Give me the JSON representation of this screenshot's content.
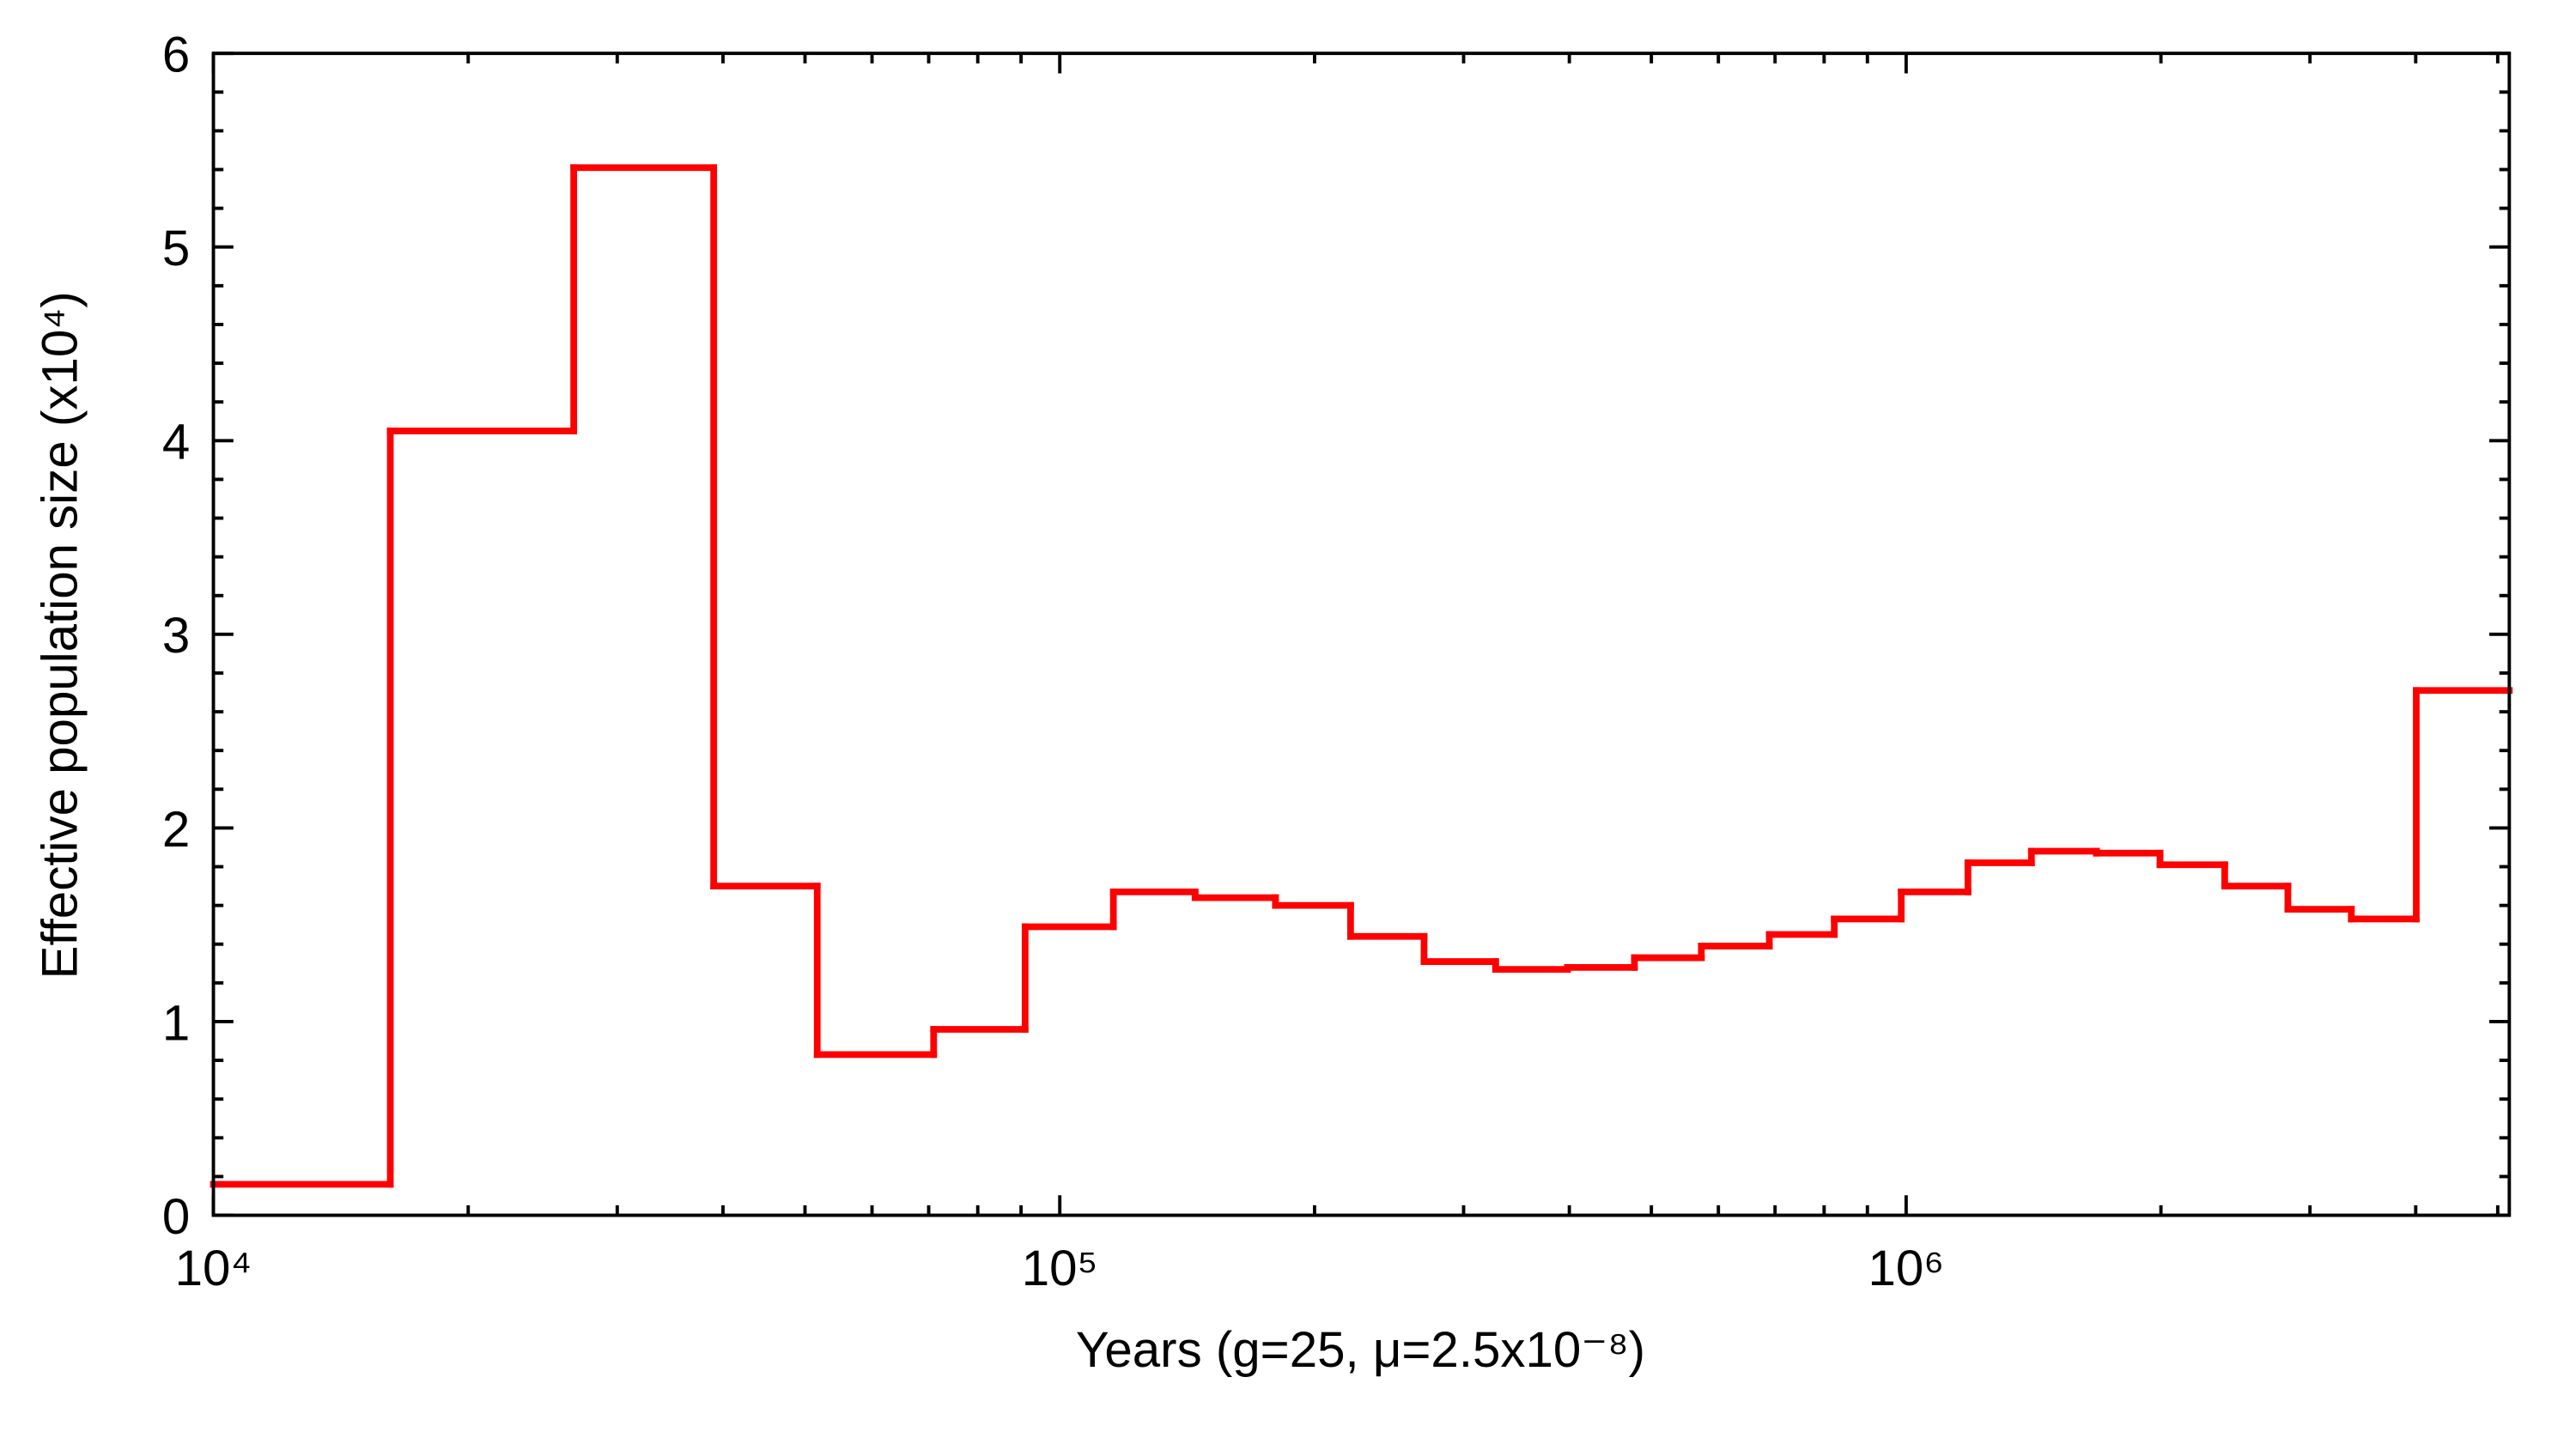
{
  "chart_data": {
    "type": "step",
    "xlabel": "Years (g=25, μ=2.5x10⁻⁸)",
    "ylabel": "Effective population size (x10⁴)",
    "x": [
      10000,
      16180,
      26650,
      39000,
      51690,
      70950,
      91000,
      115700,
      144500,
      179800,
      220600,
      269400,
      327300,
      398100,
      477500,
      572800,
      689200,
      822400,
      986700,
      1183000,
      1406000,
      1678000,
      1995000,
      2379000,
      2825000,
      3357000,
      4006000
    ],
    "series": [
      {
        "color": "#ff0000",
        "values": [
          0.16,
          4.05,
          5.41,
          1.7,
          0.83,
          0.96,
          1.49,
          1.67,
          1.64,
          1.6,
          1.44,
          1.31,
          1.27,
          1.28,
          1.33,
          1.39,
          1.45,
          1.53,
          1.67,
          1.82,
          1.88,
          1.87,
          1.81,
          1.7,
          1.58,
          1.53,
          2.71
        ]
      }
    ],
    "xscale": "log",
    "xlim": [
      10000,
      5160000
    ],
    "xticks": [
      {
        "value": 10000,
        "label": "10⁴"
      },
      {
        "value": 100000,
        "label": "10⁵"
      },
      {
        "value": 1000000,
        "label": "10⁶"
      }
    ],
    "xminorticks": [
      20000,
      30000,
      40000,
      50000,
      60000,
      70000,
      80000,
      90000,
      200000,
      300000,
      400000,
      500000,
      600000,
      700000,
      800000,
      900000,
      2000000,
      3000000,
      4000000,
      5000000
    ],
    "ylim": [
      0,
      6
    ],
    "yticks": [
      0,
      1,
      2,
      3,
      4,
      5,
      6
    ],
    "yminorticks": [
      0.2,
      0.4,
      0.6,
      0.8,
      1.2,
      1.4,
      1.6,
      1.8,
      2.2,
      2.4,
      2.6,
      2.8,
      3.2,
      3.4,
      3.6,
      3.8,
      4.2,
      4.4,
      4.6,
      4.8,
      5.2,
      5.4,
      5.6,
      5.8
    ]
  }
}
